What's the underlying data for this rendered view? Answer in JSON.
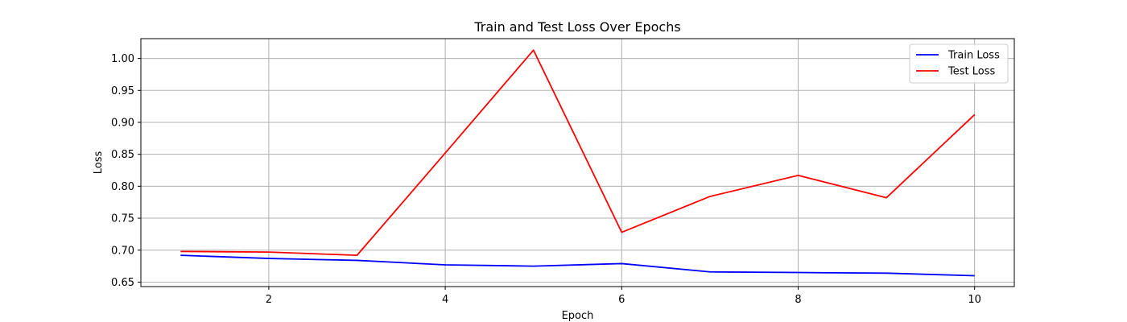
{
  "chart_data": {
    "type": "line",
    "title": "Train and Test Loss Over Epochs",
    "xlabel": "Epoch",
    "ylabel": "Loss",
    "x": [
      1,
      2,
      3,
      4,
      5,
      6,
      7,
      8,
      9,
      10
    ],
    "xlim": [
      0.55,
      10.45
    ],
    "ylim": [
      0.643,
      1.031
    ],
    "xticks": [
      2,
      4,
      6,
      8,
      10
    ],
    "yticks": [
      0.65,
      0.7,
      0.75,
      0.8,
      0.85,
      0.9,
      0.95,
      1.0
    ],
    "xtick_labels": [
      "2",
      "4",
      "6",
      "8",
      "10"
    ],
    "ytick_labels": [
      "0.65",
      "0.70",
      "0.75",
      "0.80",
      "0.85",
      "0.90",
      "0.95",
      "1.00"
    ],
    "grid": true,
    "legend_position": "top-right",
    "series": [
      {
        "name": "Train Loss",
        "color": "#0000ff",
        "values": [
          0.692,
          0.687,
          0.684,
          0.677,
          0.675,
          0.679,
          0.666,
          0.665,
          0.664,
          0.66
        ]
      },
      {
        "name": "Test Loss",
        "color": "#ff0000",
        "values": [
          0.698,
          0.697,
          0.692,
          0.852,
          1.013,
          0.728,
          0.784,
          0.817,
          0.782,
          0.912
        ]
      }
    ]
  }
}
